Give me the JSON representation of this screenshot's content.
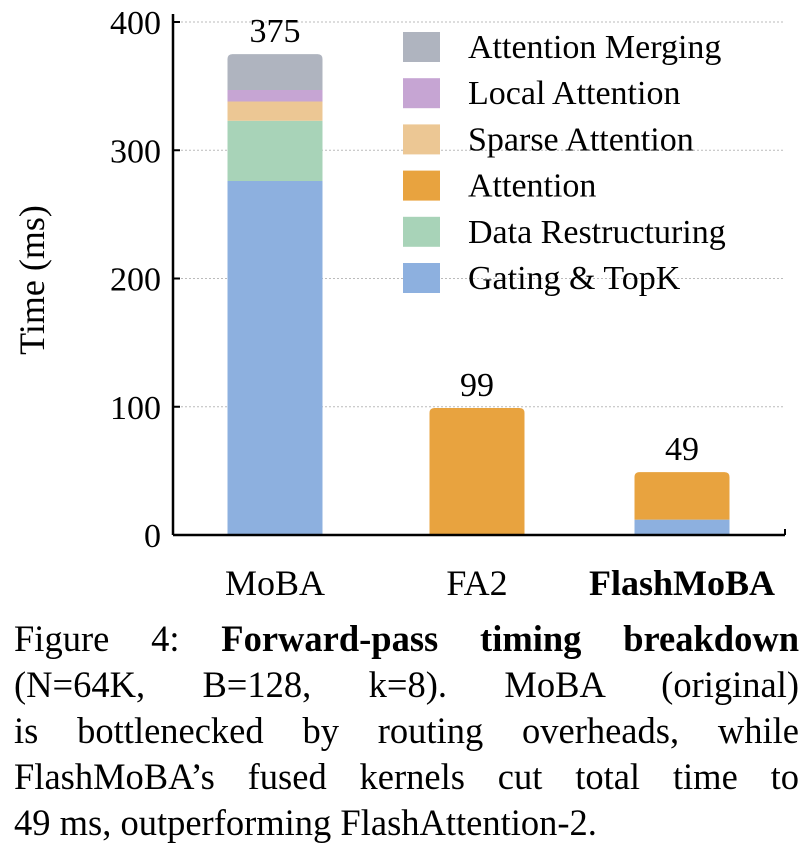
{
  "chart_data": {
    "type": "bar",
    "stacked": true,
    "categories": [
      "MoBA",
      "FA2",
      "FlashMoBA"
    ],
    "category_bold": [
      false,
      false,
      true
    ],
    "ylabel": "Time (ms)",
    "ylim": [
      0,
      400
    ],
    "yticks": [
      0,
      100,
      200,
      300,
      400
    ],
    "grid": "horizontal dotted",
    "legend_position": "top-right",
    "totals": [
      "375",
      "99",
      "49"
    ],
    "series": [
      {
        "name": "Gating & TopK",
        "color": "#8db0df",
        "values": [
          276,
          0,
          12
        ]
      },
      {
        "name": "Data Restructuring",
        "color": "#a8d3b8",
        "values": [
          47,
          0,
          0
        ]
      },
      {
        "name": "Attention",
        "color": "#e8a33f",
        "values": [
          0,
          99,
          37
        ]
      },
      {
        "name": "Sparse Attention",
        "color": "#ecc794",
        "values": [
          15,
          0,
          0
        ]
      },
      {
        "name": "Local Attention",
        "color": "#c6a5d3",
        "values": [
          9,
          0,
          0
        ]
      },
      {
        "name": "Attention Merging",
        "color": "#afb4bf",
        "values": [
          28,
          0,
          0
        ]
      }
    ],
    "legend_order": [
      "Attention Merging",
      "Local Attention",
      "Sparse Attention",
      "Attention",
      "Data Restructuring",
      "Gating & TopK"
    ]
  },
  "caption": {
    "label": "Figure 4:",
    "title": "Forward-pass timing breakdown",
    "params": "(N=64K, B=128, k=8).",
    "text1": "MoBA (original)",
    "text2": "is bottlenecked by routing overheads, while",
    "text3": "FlashMoBA’s fused kernels cut total time to",
    "text4": "49 ms, outperforming FlashAttention-2."
  }
}
